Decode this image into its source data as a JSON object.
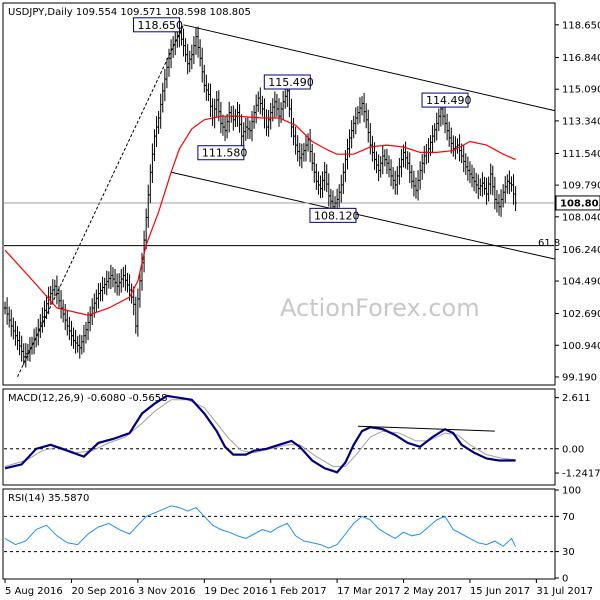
{
  "chart_data": {
    "type": "candlestick",
    "symbol_header": "USDJPY,Daily  109.554 109.571 108.598 108.805",
    "watermark": "ActionForex.com",
    "colors": {
      "bars": "#000000",
      "ma": "#ff0000",
      "macd": "#000080",
      "signal": "#a0a0a0",
      "rsi": "#1e90ff",
      "last_price_box": "#ffffff"
    },
    "price_axis": {
      "ylim": [
        98.8,
        119.8
      ],
      "ticks": [
        "118.650",
        "116.840",
        "115.090",
        "113.340",
        "111.540",
        "109.790",
        "108.040",
        "106.240",
        "104.490",
        "102.690",
        "100.940",
        "99.190"
      ],
      "tick_values": [
        118.65,
        116.84,
        115.09,
        113.34,
        111.54,
        109.79,
        108.04,
        106.24,
        104.49,
        102.69,
        100.94,
        99.19
      ],
      "last_price_label": "108.805",
      "last_price": 108.805
    },
    "x_labels": [
      "5 Aug 2016",
      "20 Sep 2016",
      "3 Nov 2016",
      "19 Dec 2016",
      "1 Feb 2017",
      "17 Mar 2017",
      "2 May 2017",
      "15 Jun 2017",
      "31 Jul 2017"
    ],
    "bars_total": 265,
    "x_label_bar_index": [
      0,
      32,
      64,
      96,
      128,
      160,
      192,
      224,
      256
    ],
    "price_anchors": [
      [
        0,
        103.0
      ],
      [
        3,
        102.0
      ],
      [
        6,
        101.2
      ],
      [
        9,
        100.3
      ],
      [
        12,
        100.8
      ],
      [
        15,
        101.5
      ],
      [
        18,
        102.5
      ],
      [
        21,
        103.6
      ],
      [
        24,
        104.2
      ],
      [
        27,
        103.0
      ],
      [
        30,
        102.0
      ],
      [
        33,
        101.2
      ],
      [
        36,
        100.8
      ],
      [
        39,
        101.8
      ],
      [
        42,
        103.0
      ],
      [
        45,
        103.8
      ],
      [
        48,
        104.3
      ],
      [
        51,
        104.8
      ],
      [
        54,
        104.2
      ],
      [
        57,
        104.8
      ],
      [
        60,
        104.0
      ],
      [
        62,
        103.2
      ],
      [
        63,
        102.0
      ],
      [
        64,
        103.5
      ],
      [
        66,
        105.5
      ],
      [
        68,
        108.0
      ],
      [
        70,
        110.5
      ],
      [
        72,
        112.5
      ],
      [
        74,
        113.5
      ],
      [
        76,
        115.0
      ],
      [
        78,
        116.3
      ],
      [
        80,
        117.3
      ],
      [
        82,
        117.8
      ],
      [
        84,
        118.2
      ],
      [
        86,
        117.5
      ],
      [
        88,
        116.5
      ],
      [
        90,
        117.0
      ],
      [
        92,
        118.0
      ],
      [
        94,
        116.8
      ],
      [
        96,
        115.3
      ],
      [
        98,
        114.8
      ],
      [
        100,
        113.5
      ],
      [
        102,
        114.5
      ],
      [
        104,
        113.2
      ],
      [
        106,
        112.8
      ],
      [
        108,
        113.8
      ],
      [
        110,
        113.4
      ],
      [
        112,
        113.8
      ],
      [
        114,
        112.5
      ],
      [
        116,
        113.0
      ],
      [
        118,
        112.8
      ],
      [
        120,
        113.8
      ],
      [
        122,
        114.6
      ],
      [
        124,
        114.0
      ],
      [
        126,
        113.0
      ],
      [
        128,
        113.8
      ],
      [
        130,
        114.4
      ],
      [
        132,
        113.6
      ],
      [
        134,
        114.4
      ],
      [
        136,
        115.0
      ],
      [
        138,
        113.0
      ],
      [
        140,
        112.0
      ],
      [
        142,
        111.3
      ],
      [
        144,
        111.7
      ],
      [
        146,
        112.3
      ],
      [
        148,
        111.0
      ],
      [
        150,
        110.0
      ],
      [
        152,
        109.6
      ],
      [
        154,
        110.5
      ],
      [
        156,
        109.2
      ],
      [
        158,
        108.6
      ],
      [
        160,
        109.0
      ],
      [
        162,
        109.8
      ],
      [
        164,
        111.2
      ],
      [
        166,
        112.4
      ],
      [
        168,
        113.2
      ],
      [
        170,
        113.8
      ],
      [
        172,
        114.3
      ],
      [
        174,
        113.4
      ],
      [
        176,
        112.0
      ],
      [
        178,
        111.2
      ],
      [
        180,
        110.6
      ],
      [
        182,
        111.4
      ],
      [
        184,
        111.0
      ],
      [
        186,
        110.3
      ],
      [
        188,
        109.8
      ],
      [
        190,
        110.8
      ],
      [
        192,
        111.6
      ],
      [
        194,
        111.0
      ],
      [
        196,
        110.0
      ],
      [
        198,
        109.5
      ],
      [
        200,
        110.6
      ],
      [
        202,
        111.4
      ],
      [
        204,
        111.8
      ],
      [
        206,
        112.5
      ],
      [
        208,
        113.2
      ],
      [
        210,
        114.0
      ],
      [
        212,
        113.2
      ],
      [
        214,
        112.4
      ],
      [
        216,
        111.8
      ],
      [
        218,
        112.0
      ],
      [
        220,
        111.4
      ],
      [
        222,
        110.8
      ],
      [
        224,
        110.4
      ],
      [
        226,
        110.0
      ],
      [
        228,
        109.6
      ],
      [
        230,
        109.9
      ],
      [
        232,
        109.3
      ],
      [
        234,
        110.4
      ],
      [
        236,
        109.0
      ],
      [
        238,
        108.6
      ],
      [
        240,
        109.4
      ],
      [
        242,
        110.0
      ],
      [
        244,
        109.8
      ],
      [
        246,
        108.8
      ]
    ],
    "ma": [
      [
        0,
        106.2
      ],
      [
        15,
        104.3
      ],
      [
        25,
        103.0
      ],
      [
        40,
        102.6
      ],
      [
        50,
        103.0
      ],
      [
        60,
        103.6
      ],
      [
        64,
        104.5
      ],
      [
        68,
        106.5
      ],
      [
        74,
        108.3
      ],
      [
        80,
        110.5
      ],
      [
        84,
        111.8
      ],
      [
        90,
        112.9
      ],
      [
        96,
        113.4
      ],
      [
        104,
        113.6
      ],
      [
        112,
        113.6
      ],
      [
        124,
        113.5
      ],
      [
        132,
        113.5
      ],
      [
        140,
        113.1
      ],
      [
        148,
        112.2
      ],
      [
        156,
        111.7
      ],
      [
        160,
        111.5
      ],
      [
        168,
        111.5
      ],
      [
        176,
        111.9
      ],
      [
        184,
        112.0
      ],
      [
        192,
        111.9
      ],
      [
        200,
        111.6
      ],
      [
        208,
        111.6
      ],
      [
        216,
        111.7
      ],
      [
        224,
        112.2
      ],
      [
        232,
        112.0
      ],
      [
        240,
        111.5
      ],
      [
        246,
        111.2
      ]
    ],
    "price_labels": [
      {
        "text": "118.650",
        "bar": 86,
        "price": 118.65
      },
      {
        "text": "115.490",
        "bar": 136,
        "price": 115.49
      },
      {
        "text": "111.580",
        "bar": 104,
        "price": 111.58
      },
      {
        "text": "108.120",
        "bar": 158,
        "price": 108.12
      },
      {
        "text": "114.490",
        "bar": 212,
        "price": 114.49
      }
    ],
    "trendlines": [
      {
        "name": "upper-channel",
        "from": [
          86,
          118.65
        ],
        "to": [
          265,
          113.9
        ]
      },
      {
        "name": "lower-channel",
        "from": [
          80,
          110.5
        ],
        "to": [
          265,
          105.7
        ]
      },
      {
        "name": "fib-level",
        "from": [
          0,
          106.45
        ],
        "to": [
          265,
          106.45
        ]
      },
      {
        "name": "dotted-rise",
        "from": [
          6,
          99.2
        ],
        "to": [
          86,
          118.65
        ]
      }
    ],
    "fib_label": "61.8",
    "macd": {
      "title": "MACD(12,26,9) -0.6080 -0.5658",
      "ylim": [
        -1.8,
        3.0
      ],
      "ticks": [
        "2.611",
        "0.00",
        "-1.2417"
      ],
      "tick_values": [
        2.611,
        0.0,
        -1.2417
      ],
      "zero_line_dashed": true,
      "macd_line": [
        [
          0,
          -1.0
        ],
        [
          8,
          -0.8
        ],
        [
          15,
          0.0
        ],
        [
          22,
          0.2
        ],
        [
          30,
          -0.1
        ],
        [
          38,
          -0.4
        ],
        [
          45,
          0.3
        ],
        [
          52,
          0.5
        ],
        [
          60,
          0.8
        ],
        [
          66,
          1.8
        ],
        [
          72,
          2.3
        ],
        [
          78,
          2.7
        ],
        [
          84,
          2.6
        ],
        [
          90,
          2.5
        ],
        [
          96,
          1.8
        ],
        [
          102,
          0.9
        ],
        [
          106,
          0.1
        ],
        [
          110,
          -0.3
        ],
        [
          116,
          -0.3
        ],
        [
          120,
          -0.1
        ],
        [
          126,
          0.0
        ],
        [
          132,
          0.2
        ],
        [
          138,
          0.4
        ],
        [
          142,
          0.1
        ],
        [
          148,
          -0.6
        ],
        [
          154,
          -1.0
        ],
        [
          160,
          -1.2
        ],
        [
          164,
          -0.7
        ],
        [
          168,
          0.2
        ],
        [
          172,
          0.9
        ],
        [
          176,
          1.1
        ],
        [
          182,
          1.0
        ],
        [
          188,
          0.7
        ],
        [
          194,
          0.3
        ],
        [
          200,
          0.1
        ],
        [
          206,
          0.6
        ],
        [
          212,
          1.0
        ],
        [
          216,
          0.8
        ],
        [
          220,
          0.2
        ],
        [
          226,
          -0.2
        ],
        [
          232,
          -0.5
        ],
        [
          238,
          -0.6
        ],
        [
          246,
          -0.6
        ]
      ],
      "signal_line": [
        [
          0,
          -0.9
        ],
        [
          10,
          -0.6
        ],
        [
          18,
          -0.1
        ],
        [
          26,
          0.1
        ],
        [
          34,
          -0.2
        ],
        [
          42,
          -0.1
        ],
        [
          50,
          0.3
        ],
        [
          58,
          0.6
        ],
        [
          66,
          1.3
        ],
        [
          72,
          1.9
        ],
        [
          80,
          2.5
        ],
        [
          88,
          2.5
        ],
        [
          96,
          2.1
        ],
        [
          102,
          1.3
        ],
        [
          108,
          0.5
        ],
        [
          114,
          -0.1
        ],
        [
          120,
          -0.2
        ],
        [
          128,
          0.0
        ],
        [
          136,
          0.2
        ],
        [
          142,
          0.2
        ],
        [
          150,
          -0.4
        ],
        [
          158,
          -0.9
        ],
        [
          164,
          -0.9
        ],
        [
          170,
          -0.2
        ],
        [
          176,
          0.6
        ],
        [
          182,
          0.9
        ],
        [
          190,
          0.8
        ],
        [
          198,
          0.4
        ],
        [
          204,
          0.4
        ],
        [
          212,
          0.8
        ],
        [
          218,
          0.7
        ],
        [
          224,
          0.2
        ],
        [
          232,
          -0.3
        ],
        [
          240,
          -0.5
        ],
        [
          246,
          -0.56
        ]
      ],
      "divergence_line": {
        "from": [
          170,
          1.15
        ],
        "to": [
          236,
          0.9
        ]
      }
    },
    "rsi": {
      "title": "RSI(14) 35.5870",
      "ylim": [
        0,
        100
      ],
      "ticks": [
        "100",
        "70",
        "30",
        "0"
      ],
      "tick_values": [
        100,
        70,
        30,
        0
      ],
      "levels_dashed": [
        70,
        30
      ],
      "values": [
        [
          0,
          45
        ],
        [
          5,
          38
        ],
        [
          10,
          42
        ],
        [
          15,
          55
        ],
        [
          20,
          60
        ],
        [
          25,
          48
        ],
        [
          30,
          40
        ],
        [
          35,
          38
        ],
        [
          40,
          50
        ],
        [
          45,
          58
        ],
        [
          50,
          62
        ],
        [
          55,
          55
        ],
        [
          60,
          50
        ],
        [
          64,
          60
        ],
        [
          68,
          70
        ],
        [
          72,
          74
        ],
        [
          76,
          78
        ],
        [
          80,
          82
        ],
        [
          84,
          80
        ],
        [
          88,
          76
        ],
        [
          92,
          80
        ],
        [
          96,
          70
        ],
        [
          100,
          60
        ],
        [
          104,
          55
        ],
        [
          108,
          52
        ],
        [
          112,
          48
        ],
        [
          116,
          45
        ],
        [
          120,
          50
        ],
        [
          124,
          55
        ],
        [
          128,
          52
        ],
        [
          132,
          58
        ],
        [
          136,
          62
        ],
        [
          140,
          48
        ],
        [
          144,
          42
        ],
        [
          148,
          40
        ],
        [
          152,
          38
        ],
        [
          156,
          34
        ],
        [
          160,
          38
        ],
        [
          164,
          50
        ],
        [
          168,
          62
        ],
        [
          172,
          70
        ],
        [
          176,
          66
        ],
        [
          180,
          56
        ],
        [
          184,
          50
        ],
        [
          188,
          45
        ],
        [
          192,
          52
        ],
        [
          196,
          48
        ],
        [
          200,
          50
        ],
        [
          204,
          58
        ],
        [
          208,
          66
        ],
        [
          212,
          70
        ],
        [
          216,
          55
        ],
        [
          220,
          50
        ],
        [
          224,
          45
        ],
        [
          228,
          40
        ],
        [
          232,
          38
        ],
        [
          236,
          42
        ],
        [
          240,
          36
        ],
        [
          244,
          45
        ],
        [
          246,
          35.6
        ]
      ]
    }
  }
}
